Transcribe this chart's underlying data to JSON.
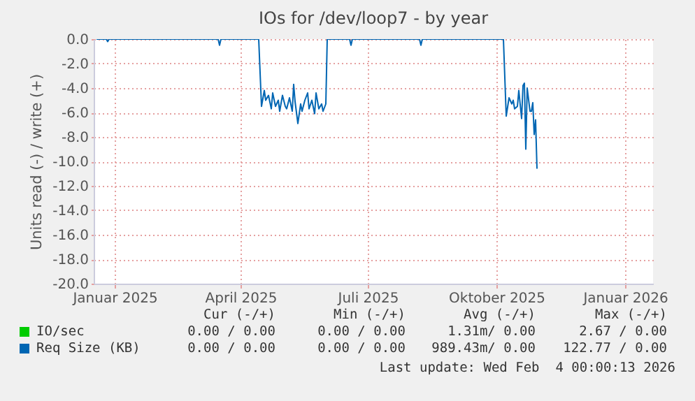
{
  "chart_data": {
    "type": "line",
    "title": "IOs for /dev/loop7 - by year",
    "ylabel": "Units read (-) / write (+)",
    "xlim": [
      "2024-12-17",
      "2026-01-21"
    ],
    "xticks": [
      {
        "value": "2025-01-01",
        "label": "Januar 2025"
      },
      {
        "value": "2025-04-01",
        "label": "April 2025"
      },
      {
        "value": "2025-07-01",
        "label": "Juli 2025"
      },
      {
        "value": "2025-10-01",
        "label": "Oktober 2025"
      },
      {
        "value": "2026-01-01",
        "label": "Januar 2026"
      }
    ],
    "ylim": [
      -20,
      0
    ],
    "yticks": [
      {
        "value": 0,
        "label": "0.0"
      },
      {
        "value": -2,
        "label": "-2.0"
      },
      {
        "value": -4,
        "label": "-4.0"
      },
      {
        "value": -6,
        "label": "-6.0"
      },
      {
        "value": -8,
        "label": "-8.0"
      },
      {
        "value": -10,
        "label": "-10.0"
      },
      {
        "value": -12,
        "label": "-12.0"
      },
      {
        "value": -14,
        "label": "-14.0"
      },
      {
        "value": -16,
        "label": "-16.0"
      },
      {
        "value": -18,
        "label": "-18.0"
      },
      {
        "value": -20,
        "label": "-20.0"
      }
    ],
    "grid": true,
    "legend": "bottom",
    "series": [
      {
        "name": "IO/sec",
        "color": "#00cc00"
      },
      {
        "name": "Req Size (KB)",
        "color": "#0066b3",
        "x": [
          "2024-12-19",
          "2024-12-26",
          "2024-12-27",
          "2024-12-28",
          "2025-03-16",
          "2025-03-17",
          "2025-03-18",
          "2025-04-14",
          "2025-04-16",
          "2025-04-18",
          "2025-04-19",
          "2025-04-21",
          "2025-04-23",
          "2025-04-24",
          "2025-04-26",
          "2025-04-28",
          "2025-04-29",
          "2025-05-01",
          "2025-05-03",
          "2025-05-04",
          "2025-05-06",
          "2025-05-08",
          "2025-05-09",
          "2025-05-10",
          "2025-05-12",
          "2025-05-14",
          "2025-05-15",
          "2025-05-17",
          "2025-05-19",
          "2025-05-20",
          "2025-05-22",
          "2025-05-24",
          "2025-05-25",
          "2025-05-27",
          "2025-05-29",
          "2025-05-30",
          "2025-06-01",
          "2025-06-02",
          "2025-06-18",
          "2025-06-19",
          "2025-06-20",
          "2025-08-07",
          "2025-08-08",
          "2025-08-09",
          "2025-10-06",
          "2025-10-08",
          "2025-10-10",
          "2025-10-12",
          "2025-10-13",
          "2025-10-14",
          "2025-10-16",
          "2025-10-17",
          "2025-10-19",
          "2025-10-20",
          "2025-10-21",
          "2025-10-22",
          "2025-10-23",
          "2025-10-25",
          "2025-10-26",
          "2025-10-27",
          "2025-10-28",
          "2025-10-29",
          "2025-10-30"
        ],
        "values": [
          0,
          0,
          -0.2,
          0,
          0,
          -0.5,
          0,
          0,
          -5.5,
          -4.2,
          -5,
          -4.6,
          -5.7,
          -4.4,
          -5.5,
          -5,
          -5.9,
          -4.6,
          -5.5,
          -5.7,
          -4.8,
          -5.9,
          -3.7,
          -5.1,
          -6.9,
          -5.3,
          -5.9,
          -5,
          -4.4,
          -5.7,
          -5,
          -6.1,
          -4.4,
          -5.7,
          -5.3,
          -5.9,
          -5.3,
          0,
          0,
          -0.5,
          0,
          0,
          -0.5,
          0,
          0,
          -6.3,
          -4.8,
          -5.3,
          -5,
          -5.7,
          -5.5,
          -4.2,
          -6.5,
          -3.8,
          -3.6,
          -9,
          -4,
          -5.9,
          -5.9,
          -5.2,
          -7.8,
          -6.6,
          -10.6
        ]
      }
    ],
    "annotations": [
      "Cur (-/+)",
      "Min (-/+)",
      "Avg (-/+)",
      "Max (-/+)",
      "0.00 / 0.00",
      "0.00 / 0.00",
      "1.31m/ 0.00",
      "2.67 / 0.00",
      "0.00 / 0.00",
      "0.00 / 0.00",
      "989.43m/ 0.00",
      "122.77 / 0.00",
      "Last update: Wed Feb  4 00:00:13 2026"
    ]
  }
}
